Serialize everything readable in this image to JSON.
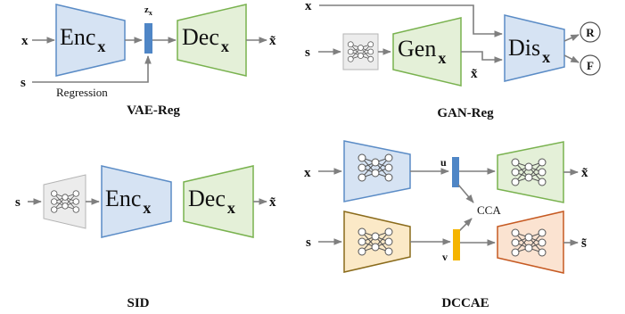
{
  "colors": {
    "blue_fill": "#d6e3f3",
    "blue_stroke": "#5b8cc6",
    "green_fill": "#e4f0d8",
    "green_stroke": "#79b24f",
    "gray_fill": "#ececec",
    "gray_stroke": "#b4b4b4",
    "yellow_fill": "#fbe9c7",
    "yellow_stroke": "#8a6b1b",
    "orange_fill": "#fbe3d1",
    "orange_stroke": "#c65a22",
    "latent_blue": "#4f86c6",
    "latent_yellow": "#f5b400",
    "arrow": "#7f7f7f"
  },
  "vae_reg": {
    "title": "VAE-Reg",
    "input_x": "x",
    "input_s": "s",
    "encoder": {
      "main": "Enc",
      "sub": "x"
    },
    "latent_label": {
      "main": "z",
      "sub": "x"
    },
    "decoder": {
      "main": "Dec",
      "sub": "x"
    },
    "output": "x̃",
    "regression_label": "Regression"
  },
  "gan_reg": {
    "title": "GAN-Reg",
    "input_x": "x",
    "input_s": "s",
    "generator": {
      "main": "Gen",
      "sub": "x"
    },
    "generated": "x̃",
    "discriminator": {
      "main": "Dis",
      "sub": "x"
    },
    "out_real": "R",
    "out_fake": "F"
  },
  "sid": {
    "title": "SID",
    "input_s": "s",
    "encoder": {
      "main": "Enc",
      "sub": "x"
    },
    "decoder": {
      "main": "Dec",
      "sub": "x"
    },
    "output": "x̃"
  },
  "dccae": {
    "title": "DCCAE",
    "input_x": "x",
    "input_s": "s",
    "latent_u": "u",
    "latent_v": "v",
    "cca_label": "CCA",
    "output_x": "x̃",
    "output_s": "s̃"
  }
}
